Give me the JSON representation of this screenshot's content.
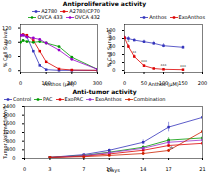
{
  "chart_data": [
    {
      "type": "line",
      "title": "Antiproliferative activity",
      "xlabel": "Anthos (μM)",
      "ylabel": "% Cell Survival",
      "xlim": [
        0,
        300
      ],
      "ylim": [
        -5,
        130
      ],
      "xticks": [
        0,
        100,
        200,
        300
      ],
      "yticks": [
        0,
        40,
        80,
        120
      ],
      "legend": "upper right",
      "x": [
        0,
        10,
        25,
        50,
        75,
        100,
        150,
        200,
        300
      ],
      "series": [
        {
          "name": "A2780",
          "color": "#3333bb",
          "marker": "square",
          "values": [
            100,
            100,
            95,
            55,
            15,
            3,
            1,
            1,
            1
          ]
        },
        {
          "name": "A2780/CP70",
          "color": "#dd0000",
          "marker": "square",
          "values": [
            100,
            102,
            100,
            85,
            55,
            25,
            5,
            2,
            1
          ]
        },
        {
          "name": "OVCA 433",
          "color": "#009900",
          "marker": "circle",
          "values": [
            80,
            85,
            82,
            80,
            82,
            78,
            68,
            38,
            4
          ]
        },
        {
          "name": "OVCA 432",
          "color": "#9900cc",
          "marker": "circle",
          "values": [
            100,
            100,
            95,
            92,
            88,
            78,
            58,
            32,
            4
          ]
        }
      ]
    },
    {
      "type": "line",
      "xlabel": "Anthos (μM)",
      "ylabel": "% Cell Survival",
      "xlim": [
        0,
        200
      ],
      "ylim": [
        -5,
        115
      ],
      "xticks": [
        0,
        50,
        100,
        150,
        200
      ],
      "yticks": [
        0,
        20,
        40,
        60,
        80,
        100
      ],
      "legend": "upper right",
      "x": [
        0,
        10,
        25,
        50,
        75,
        100,
        150
      ],
      "series": [
        {
          "name": "Anthos",
          "color": "#3333bb",
          "marker": "square",
          "values": [
            82,
            80,
            76,
            72,
            68,
            62,
            58
          ],
          "yerr": [
            4,
            5,
            4,
            4,
            5,
            5,
            4
          ]
        },
        {
          "name": "ExoAnthos",
          "color": "#dd0000",
          "marker": "square",
          "values": [
            82,
            60,
            35,
            12,
            5,
            3,
            2
          ],
          "yerr": [
            4,
            5,
            4,
            3,
            2,
            1,
            1
          ]
        }
      ],
      "annotations": [
        {
          "x": 10,
          "y": 68,
          "text": "*"
        },
        {
          "x": 25,
          "y": 42,
          "text": "**"
        },
        {
          "x": 50,
          "y": 18,
          "text": "***"
        },
        {
          "x": 100,
          "y": 8,
          "text": "***"
        },
        {
          "x": 150,
          "y": 7,
          "text": "***"
        }
      ]
    },
    {
      "type": "line",
      "title": "Anti-tumor activity",
      "xlabel": "Days",
      "ylabel": "Tumor Volume (mm³)",
      "xlim": [
        0,
        21
      ],
      "ylim": [
        0,
        2400
      ],
      "xticks": [
        0,
        3,
        7,
        10,
        14,
        17,
        21
      ],
      "yticks": [
        0,
        400,
        800,
        1200,
        1600,
        2000,
        2400
      ],
      "legend": "upper left",
      "x": [
        3,
        7,
        10,
        14,
        17,
        21
      ],
      "series": [
        {
          "name": "Control",
          "color": "#3333bb",
          "marker": "square",
          "values": [
            50,
            180,
            380,
            750,
            1450,
            1900
          ],
          "yerr": [
            8,
            30,
            60,
            110,
            220,
            400
          ]
        },
        {
          "name": "PAC",
          "color": "#009900",
          "marker": "square",
          "values": [
            50,
            140,
            290,
            520,
            850,
            950
          ],
          "yerr": [
            8,
            22,
            45,
            80,
            110,
            130
          ]
        },
        {
          "name": "ExoPAC",
          "color": "#dd0000",
          "marker": "square",
          "values": [
            50,
            110,
            210,
            380,
            600,
            700
          ],
          "yerr": [
            8,
            18,
            35,
            60,
            85,
            100
          ]
        },
        {
          "name": "ExoAnthos",
          "color": "#9933cc",
          "marker": "square",
          "values": [
            50,
            130,
            270,
            470,
            750,
            850
          ],
          "yerr": [
            8,
            20,
            42,
            72,
            100,
            120
          ]
        },
        {
          "name": "Combination",
          "color": "#cc2200",
          "marker": "circle",
          "values": [
            50,
            85,
            140,
            230,
            370,
            1250
          ],
          "yerr": [
            8,
            14,
            22,
            38,
            55,
            220
          ]
        }
      ],
      "annotations": [
        {
          "x": 17.3,
          "y": 440,
          "text": "*"
        },
        {
          "x": 17.3,
          "y": 370,
          "text": "**"
        }
      ]
    }
  ]
}
